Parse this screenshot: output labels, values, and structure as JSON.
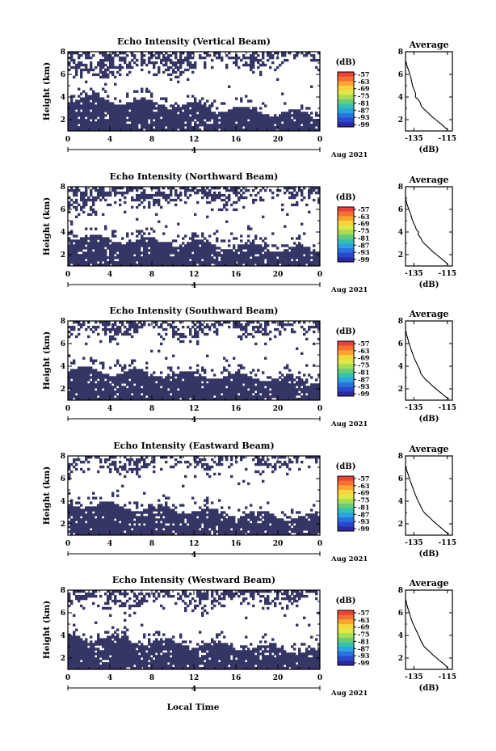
{
  "figure": {
    "xlabel": "Local Time"
  },
  "chart_data": [
    {
      "type": "heatmap",
      "title": "Echo Intensity (Vertical Beam)",
      "ylabel": "Height (km)",
      "ylim": [
        1,
        8
      ],
      "yticks": [
        "2",
        "4",
        "6",
        "8"
      ],
      "xlim": [
        0,
        24
      ],
      "xticks": [
        "0",
        "4",
        "8",
        "12",
        "16",
        "20",
        "0"
      ],
      "date_label": "Aug 2021",
      "day_tick": "4",
      "clear_base_km": [
        4.0,
        2.4
      ],
      "cloud_top_km": [
        6.0,
        7.4
      ],
      "seed": 11,
      "colorbar": {
        "unit": "(dB)",
        "ticks": [
          "-57",
          "-63",
          "-69",
          "-75",
          "-81",
          "-87",
          "-93",
          "-99"
        ],
        "colors": [
          "#e9423a",
          "#f4712f",
          "#f9a530",
          "#f6d43b",
          "#dde947",
          "#a7dc55",
          "#66cc7a",
          "#35c1b0",
          "#2aa3e0",
          "#2a72de",
          "#2b48cf",
          "#2c2a9e"
        ]
      },
      "average": {
        "title": "Average",
        "xlabel": "(dB)",
        "xticks": [
          "-135",
          "-115"
        ],
        "xlim": [
          -140,
          -112
        ],
        "ylim": [
          1,
          8
        ],
        "yticks": [
          "2",
          "4",
          "6",
          "8"
        ],
        "profile": [
          [
            -141,
            7.8
          ],
          [
            -140.5,
            7.5
          ],
          [
            -139.8,
            7.1
          ],
          [
            -139,
            6.7
          ],
          [
            -138,
            6.3
          ],
          [
            -137.2,
            5.9
          ],
          [
            -136.5,
            5.5
          ],
          [
            -135.8,
            5.0
          ],
          [
            -134.8,
            4.6
          ],
          [
            -133.9,
            4.3
          ],
          [
            -134.1,
            4.0
          ],
          [
            -132.5,
            3.8
          ],
          [
            -131.2,
            3.5
          ],
          [
            -130.6,
            3.2
          ],
          [
            -129.5,
            3.0
          ],
          [
            -128,
            2.8
          ],
          [
            -126.5,
            2.6
          ],
          [
            -124.5,
            2.3
          ],
          [
            -122,
            2.0
          ],
          [
            -119.5,
            1.7
          ],
          [
            -117,
            1.4
          ],
          [
            -115,
            1.1
          ]
        ]
      }
    },
    {
      "type": "heatmap",
      "title": "Echo Intensity (Northward Beam)",
      "ylabel": "Height (km)",
      "ylim": [
        1,
        8
      ],
      "yticks": [
        "2",
        "4",
        "6",
        "8"
      ],
      "xlim": [
        0,
        24
      ],
      "xticks": [
        "0",
        "4",
        "8",
        "12",
        "16",
        "20",
        "0"
      ],
      "date_label": "Aug 2021",
      "day_tick": "4",
      "clear_base_km": [
        3.6,
        2.4
      ],
      "cloud_top_km": [
        6.4,
        7.3
      ],
      "seed": 23,
      "colorbar": {
        "unit": "(dB)",
        "ticks": [
          "-57",
          "-63",
          "-69",
          "-75",
          "-81",
          "-87",
          "-93",
          "-99"
        ],
        "colors": [
          "#e9423a",
          "#f4712f",
          "#f9a530",
          "#f6d43b",
          "#dde947",
          "#a7dc55",
          "#66cc7a",
          "#35c1b0",
          "#2aa3e0",
          "#2a72de",
          "#2b48cf",
          "#2c2a9e"
        ]
      },
      "average": {
        "title": "Average",
        "xlabel": "(dB)",
        "xticks": [
          "-135",
          "-115"
        ],
        "xlim": [
          -140,
          -112
        ],
        "ylim": [
          1,
          8
        ],
        "yticks": [
          "2",
          "4",
          "6",
          "8"
        ],
        "profile": [
          [
            -141,
            7.8
          ],
          [
            -140.5,
            7.3
          ],
          [
            -139.7,
            6.8
          ],
          [
            -139,
            6.4
          ],
          [
            -138,
            6.0
          ],
          [
            -137,
            5.6
          ],
          [
            -136.2,
            5.2
          ],
          [
            -135.2,
            4.8
          ],
          [
            -134.2,
            4.5
          ],
          [
            -133.5,
            4.2
          ],
          [
            -132.2,
            4.0
          ],
          [
            -132.6,
            3.8
          ],
          [
            -131,
            3.5
          ],
          [
            -130,
            3.2
          ],
          [
            -129,
            3.0
          ],
          [
            -127.5,
            2.8
          ],
          [
            -126,
            2.6
          ],
          [
            -124,
            2.3
          ],
          [
            -121.5,
            2.0
          ],
          [
            -119,
            1.7
          ],
          [
            -116.5,
            1.4
          ],
          [
            -114.5,
            1.1
          ]
        ]
      }
    },
    {
      "type": "heatmap",
      "title": "Echo Intensity (Southward Beam)",
      "ylabel": "Height (km)",
      "ylim": [
        1,
        8
      ],
      "yticks": [
        "2",
        "4",
        "6",
        "8"
      ],
      "xlim": [
        0,
        24
      ],
      "xticks": [
        "0",
        "4",
        "8",
        "12",
        "16",
        "20",
        "0"
      ],
      "date_label": "Aug 2021",
      "day_tick": "4",
      "clear_base_km": [
        3.7,
        2.8
      ],
      "cloud_top_km": [
        6.8,
        7.3
      ],
      "seed": 37,
      "colorbar": {
        "unit": "(dB)",
        "ticks": [
          "-57",
          "-63",
          "-69",
          "-75",
          "-81",
          "-87",
          "-93",
          "-99"
        ],
        "colors": [
          "#e9423a",
          "#f4712f",
          "#f9a530",
          "#f6d43b",
          "#dde947",
          "#a7dc55",
          "#66cc7a",
          "#35c1b0",
          "#2aa3e0",
          "#2a72de",
          "#2b48cf",
          "#2c2a9e"
        ]
      },
      "average": {
        "title": "Average",
        "xlabel": "(dB)",
        "xticks": [
          "-135",
          "-115"
        ],
        "xlim": [
          -140,
          -112
        ],
        "ylim": [
          1,
          8
        ],
        "yticks": [
          "2",
          "4",
          "6",
          "8"
        ],
        "profile": [
          [
            -141,
            7.8
          ],
          [
            -140.5,
            7.4
          ],
          [
            -139.8,
            7.0
          ],
          [
            -139,
            6.6
          ],
          [
            -138.2,
            6.2
          ],
          [
            -137.4,
            5.8
          ],
          [
            -136.5,
            5.4
          ],
          [
            -135.5,
            5.0
          ],
          [
            -134.5,
            4.6
          ],
          [
            -133.5,
            4.3
          ],
          [
            -132.5,
            4.0
          ],
          [
            -131.5,
            3.7
          ],
          [
            -131,
            3.4
          ],
          [
            -129.6,
            3.1
          ],
          [
            -128.5,
            2.9
          ],
          [
            -127,
            2.7
          ],
          [
            -125.5,
            2.5
          ],
          [
            -123.5,
            2.2
          ],
          [
            -121,
            1.9
          ],
          [
            -118.5,
            1.6
          ],
          [
            -116,
            1.3
          ],
          [
            -114,
            1.1
          ]
        ]
      }
    },
    {
      "type": "heatmap",
      "title": "Echo Intensity (Eastward Beam)",
      "ylabel": "Height (km)",
      "ylim": [
        1,
        8
      ],
      "yticks": [
        "2",
        "4",
        "6",
        "8"
      ],
      "xlim": [
        0,
        24
      ],
      "xticks": [
        "0",
        "4",
        "8",
        "12",
        "16",
        "20",
        "0"
      ],
      "date_label": "Aug 2021",
      "day_tick": "4",
      "clear_base_km": [
        3.8,
        2.5
      ],
      "cloud_top_km": [
        7.0,
        7.4
      ],
      "seed": 53,
      "colorbar": {
        "unit": "(dB)",
        "ticks": [
          "-57",
          "-63",
          "-69",
          "-75",
          "-81",
          "-87",
          "-93",
          "-99"
        ],
        "colors": [
          "#e9423a",
          "#f4712f",
          "#f9a530",
          "#f6d43b",
          "#dde947",
          "#a7dc55",
          "#66cc7a",
          "#35c1b0",
          "#2aa3e0",
          "#2a72de",
          "#2b48cf",
          "#2c2a9e"
        ]
      },
      "average": {
        "title": "Average",
        "xlabel": "(dB)",
        "xticks": [
          "-135",
          "-115"
        ],
        "xlim": [
          -140,
          -112
        ],
        "ylim": [
          1,
          8
        ],
        "yticks": [
          "2",
          "4",
          "6",
          "8"
        ],
        "profile": [
          [
            -141,
            7.8
          ],
          [
            -140.5,
            7.4
          ],
          [
            -139.8,
            7.0
          ],
          [
            -139,
            6.6
          ],
          [
            -138,
            6.2
          ],
          [
            -137.2,
            5.8
          ],
          [
            -136.2,
            5.4
          ],
          [
            -135.2,
            5.0
          ],
          [
            -134.2,
            4.6
          ],
          [
            -133.4,
            4.3
          ],
          [
            -132.4,
            4.0
          ],
          [
            -131.4,
            3.7
          ],
          [
            -130.5,
            3.4
          ],
          [
            -129.4,
            3.1
          ],
          [
            -128.2,
            2.9
          ],
          [
            -126.8,
            2.7
          ],
          [
            -125.2,
            2.5
          ],
          [
            -123.2,
            2.2
          ],
          [
            -120.8,
            1.9
          ],
          [
            -118.4,
            1.6
          ],
          [
            -116,
            1.3
          ],
          [
            -114,
            1.1
          ]
        ]
      }
    },
    {
      "type": "heatmap",
      "title": "Echo Intensity (Westward Beam)",
      "ylabel": "Height (km)",
      "ylim": [
        1,
        8
      ],
      "yticks": [
        "2",
        "4",
        "6",
        "8"
      ],
      "xlim": [
        0,
        24
      ],
      "xticks": [
        "0",
        "4",
        "8",
        "12",
        "16",
        "20",
        "0"
      ],
      "date_label": "Aug 2021",
      "day_tick": "4",
      "clear_base_km": [
        3.9,
        2.6
      ],
      "cloud_top_km": [
        6.8,
        7.2
      ],
      "seed": 71,
      "colorbar": {
        "unit": "(dB)",
        "ticks": [
          "-57",
          "-63",
          "-69",
          "-75",
          "-81",
          "-87",
          "-93",
          "-99"
        ],
        "colors": [
          "#e9423a",
          "#f4712f",
          "#f9a530",
          "#f6d43b",
          "#dde947",
          "#a7dc55",
          "#66cc7a",
          "#35c1b0",
          "#2aa3e0",
          "#2a72de",
          "#2b48cf",
          "#2c2a9e"
        ]
      },
      "average": {
        "title": "Average",
        "xlabel": "(dB)",
        "xticks": [
          "-135",
          "-115"
        ],
        "xlim": [
          -140,
          -112
        ],
        "ylim": [
          1,
          8
        ],
        "yticks": [
          "2",
          "4",
          "6",
          "8"
        ],
        "profile": [
          [
            -141,
            7.8
          ],
          [
            -140.6,
            7.5
          ],
          [
            -139.9,
            7.1
          ],
          [
            -139.2,
            6.7
          ],
          [
            -138.4,
            6.3
          ],
          [
            -137.5,
            5.9
          ],
          [
            -136.7,
            5.5
          ],
          [
            -135.7,
            5.1
          ],
          [
            -134.8,
            4.8
          ],
          [
            -133.8,
            4.5
          ],
          [
            -132.8,
            4.2
          ],
          [
            -131.9,
            3.9
          ],
          [
            -131,
            3.6
          ],
          [
            -130,
            3.3
          ],
          [
            -128.8,
            3.0
          ],
          [
            -127.4,
            2.8
          ],
          [
            -125.8,
            2.6
          ],
          [
            -123.8,
            2.3
          ],
          [
            -121.4,
            2.0
          ],
          [
            -119,
            1.7
          ],
          [
            -116.5,
            1.4
          ],
          [
            -114.5,
            1.1
          ]
        ]
      }
    }
  ]
}
